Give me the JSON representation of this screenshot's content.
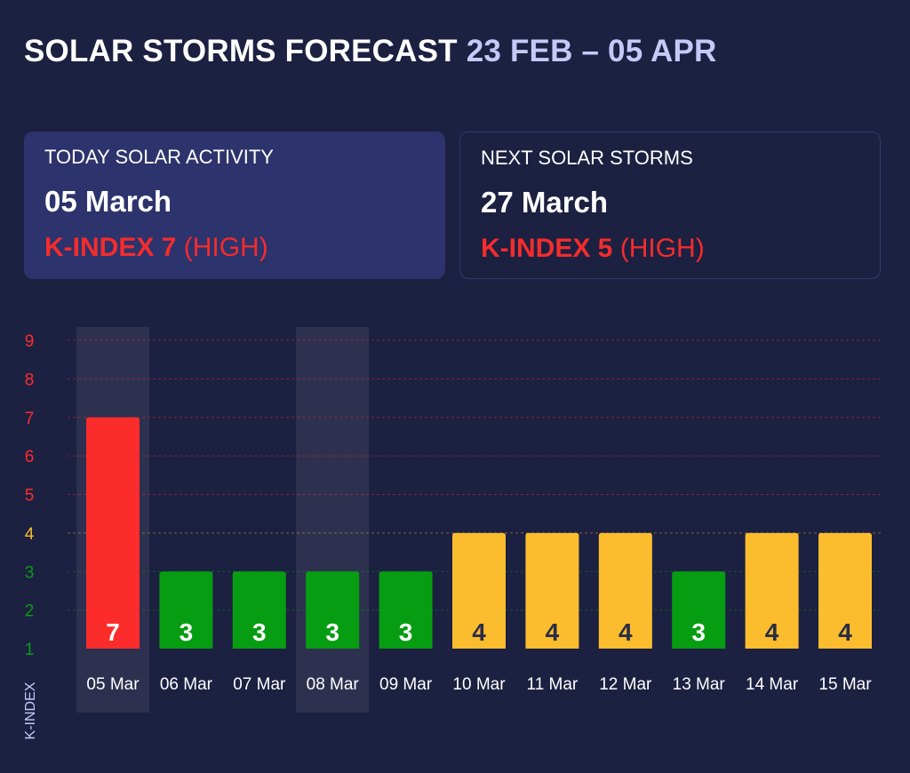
{
  "header": {
    "title": "SOLAR STORMS FORECAST",
    "range": "23 FEB – 05 APR"
  },
  "today": {
    "label": "TODAY SOLAR ACTIVITY",
    "date": "05 March",
    "kindex": "K-INDEX 7",
    "level": "(HIGH)"
  },
  "next": {
    "label": "NEXT SOLAR STORMS",
    "date": "27 March",
    "kindex": "K-INDEX 5",
    "level": "(HIGH)"
  },
  "colors": {
    "background": "#1c2041",
    "card_active": "#2d336c",
    "high": "#fc2c2c",
    "medium": "#fbbd2e",
    "low": "#069d12",
    "range_text": "#c6c9f7",
    "axis_label": "#c6c9f7"
  },
  "chart_data": {
    "type": "bar",
    "title": "",
    "xlabel": "",
    "ylabel": "K-INDEX",
    "ylim": [
      1,
      9
    ],
    "yticks": [
      "1",
      "2",
      "3",
      "4",
      "5",
      "6",
      "7",
      "8",
      "9"
    ],
    "categories": [
      "05 Mar",
      "06 Mar",
      "07 Mar",
      "08 Mar",
      "09 Mar",
      "10 Mar",
      "11 Mar",
      "12 Mar",
      "13 Mar",
      "14 Mar",
      "15 Mar"
    ],
    "values": [
      7,
      3,
      3,
      3,
      3,
      4,
      4,
      4,
      3,
      4,
      4
    ],
    "value_labels": [
      "7",
      "3",
      "3",
      "3",
      "3",
      "4",
      "4",
      "4",
      "3",
      "4",
      "4"
    ],
    "highlighted": [
      "05 Mar",
      "08 Mar"
    ],
    "thresholds": {
      "low_max": 3,
      "medium_max": 4
    }
  }
}
